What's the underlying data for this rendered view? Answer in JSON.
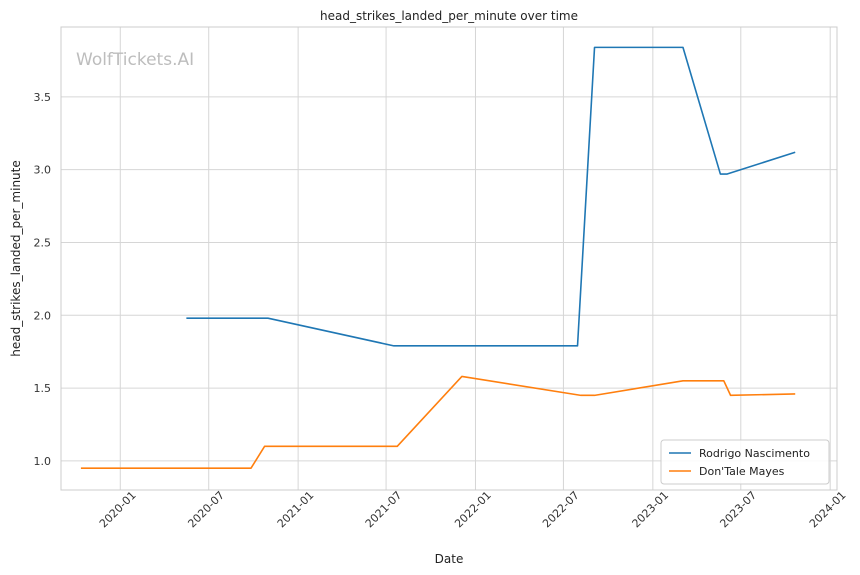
{
  "chart_data": {
    "type": "line",
    "title": "head_strikes_landed_per_minute over time",
    "xlabel": "Date",
    "ylabel": "head_strikes_landed_per_minute",
    "watermark": "WolfTickets.AI",
    "xlim": [
      "2019-09-01",
      "2024-01-15"
    ],
    "ylim": [
      0.8,
      3.98
    ],
    "x_ticks": [
      "2020-01",
      "2020-07",
      "2021-01",
      "2021-07",
      "2022-01",
      "2022-07",
      "2023-01",
      "2023-07",
      "2024-01"
    ],
    "y_ticks": [
      1.0,
      1.5,
      2.0,
      2.5,
      3.0,
      3.5
    ],
    "grid": true,
    "legend_position": "bottom-right",
    "series": [
      {
        "name": "Rodrigo Nascimento",
        "color": "#1f77b4",
        "points": [
          {
            "x": "2020-05-16",
            "y": 1.98
          },
          {
            "x": "2020-10-31",
            "y": 1.98
          },
          {
            "x": "2021-07-17",
            "y": 1.79
          },
          {
            "x": "2022-07-30",
            "y": 1.79
          },
          {
            "x": "2022-09-03",
            "y": 3.84
          },
          {
            "x": "2023-03-04",
            "y": 3.84
          },
          {
            "x": "2023-05-20",
            "y": 2.97
          },
          {
            "x": "2023-06-03",
            "y": 2.97
          },
          {
            "x": "2023-10-21",
            "y": 3.12
          }
        ]
      },
      {
        "name": "Don'Tale Mayes",
        "color": "#ff7f0e",
        "points": [
          {
            "x": "2019-10-12",
            "y": 0.95
          },
          {
            "x": "2020-09-26",
            "y": 0.95
          },
          {
            "x": "2020-10-24",
            "y": 1.1
          },
          {
            "x": "2021-07-24",
            "y": 1.1
          },
          {
            "x": "2021-12-04",
            "y": 1.58
          },
          {
            "x": "2022-08-06",
            "y": 1.45
          },
          {
            "x": "2022-09-03",
            "y": 1.45
          },
          {
            "x": "2023-03-04",
            "y": 1.55
          },
          {
            "x": "2023-05-27",
            "y": 1.55
          },
          {
            "x": "2023-06-10",
            "y": 1.45
          },
          {
            "x": "2023-10-21",
            "y": 1.46
          }
        ]
      }
    ]
  }
}
